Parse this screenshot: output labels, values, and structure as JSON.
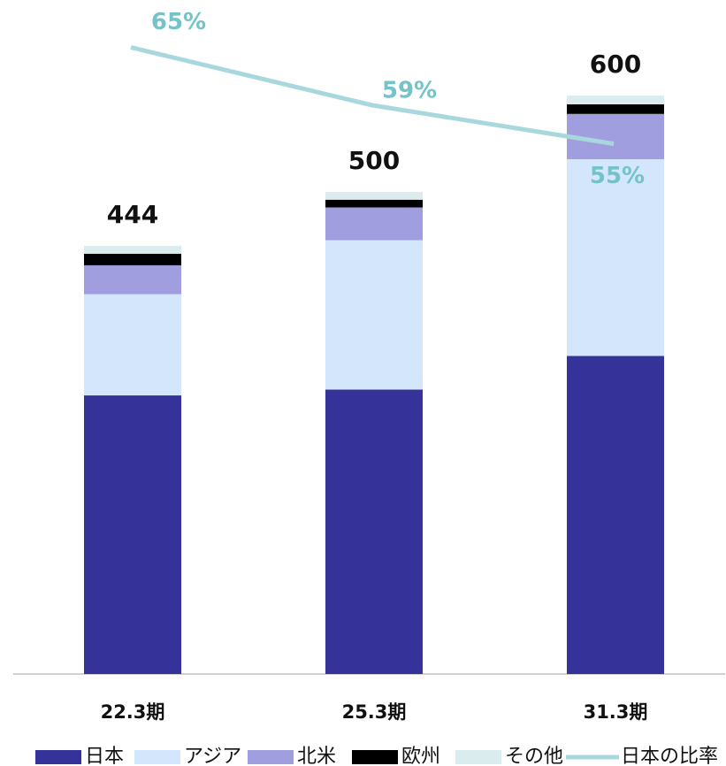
{
  "chart_data": {
    "type": "bar",
    "stacked": true,
    "categories": [
      "22.3期",
      "25.3期",
      "31.3期"
    ],
    "series": [
      {
        "name": "日本",
        "color": "#35339a",
        "values": [
          289,
          295,
          330
        ]
      },
      {
        "name": "アジア",
        "color": "#d4e6fb",
        "values": [
          105,
          155,
          204
        ]
      },
      {
        "name": "北米",
        "color": "#a09ede",
        "values": [
          30,
          34,
          47
        ]
      },
      {
        "name": "欧州",
        "color": "#000000",
        "values": [
          12,
          8,
          10
        ]
      },
      {
        "name": "その他",
        "color": "#daecee",
        "values": [
          8,
          8,
          9
        ]
      },
      {
        "name": "日本の比率",
        "type": "line",
        "axis": "y2",
        "color": "#a8d8dd",
        "label_color": "#74c3c9",
        "values": [
          65,
          59,
          55
        ],
        "value_labels": [
          "65%",
          "59%",
          "55%"
        ]
      }
    ],
    "totals": [
      444,
      500,
      600
    ],
    "ylim": [
      0,
      690
    ],
    "y2lim": [
      0,
      69
    ],
    "legend": "bottom"
  }
}
